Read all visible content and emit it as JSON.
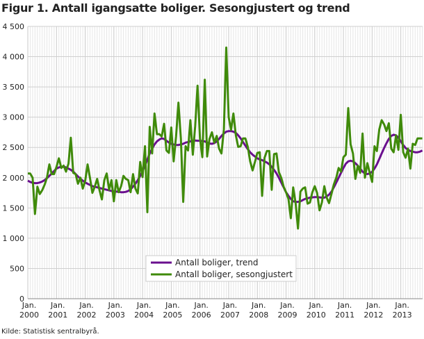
{
  "chart_data": {
    "type": "line",
    "title": "Figur 1. Antall igangsatte boliger. Sesongjustert og trend",
    "source": "Kilde: Statistisk sentralbyrå.",
    "xlabel": "",
    "ylabel": "",
    "ylim": [
      0,
      4500
    ],
    "yticks": [
      "0",
      "500",
      "1 000",
      "1 500",
      "2 000",
      "2 500",
      "3 000",
      "3 500",
      "4 000",
      "4 500"
    ],
    "ytick_values": [
      0,
      500,
      1000,
      1500,
      2000,
      2500,
      3000,
      3500,
      4000,
      4500
    ],
    "x_start": "Jan. 2000",
    "x_frequency": "monthly",
    "xtick_prefix": "Jan.",
    "xticks": [
      "2000",
      "2001",
      "2002",
      "2003",
      "2004",
      "2005",
      "2006",
      "2007",
      "2008",
      "2009",
      "2010",
      "2011",
      "2012",
      "2013"
    ],
    "grid": true,
    "legend_position": "bottom-center",
    "colors": {
      "trend": "#6a0f8e",
      "seasonal": "#3f8a0a",
      "grid": "#d0d0d0"
    },
    "series": [
      {
        "name": "Antall boliger, trend",
        "values": [
          1950,
          1930,
          1915,
          1910,
          1910,
          1920,
          1935,
          1960,
          1990,
          2030,
          2070,
          2110,
          2150,
          2170,
          2180,
          2180,
          2170,
          2150,
          2130,
          2100,
          2060,
          2020,
          1980,
          1950,
          1920,
          1900,
          1880,
          1860,
          1850,
          1840,
          1830,
          1820,
          1810,
          1800,
          1790,
          1780,
          1775,
          1770,
          1765,
          1760,
          1760,
          1765,
          1780,
          1810,
          1850,
          1900,
          1960,
          2030,
          2110,
          2200,
          2300,
          2400,
          2480,
          2550,
          2600,
          2630,
          2650,
          2640,
          2610,
          2580,
          2560,
          2550,
          2540,
          2540,
          2550,
          2560,
          2580,
          2590,
          2600,
          2610,
          2615,
          2610,
          2610,
          2605,
          2600,
          2580,
          2565,
          2560,
          2570,
          2600,
          2640,
          2690,
          2730,
          2760,
          2770,
          2770,
          2760,
          2740,
          2700,
          2650,
          2590,
          2530,
          2470,
          2420,
          2380,
          2350,
          2320,
          2300,
          2290,
          2270,
          2250,
          2220,
          2180,
          2130,
          2070,
          2000,
          1920,
          1840,
          1760,
          1700,
          1650,
          1610,
          1600,
          1600,
          1610,
          1630,
          1650,
          1660,
          1670,
          1675,
          1680,
          1680,
          1675,
          1670,
          1670,
          1690,
          1720,
          1770,
          1840,
          1920,
          2000,
          2080,
          2160,
          2230,
          2270,
          2280,
          2270,
          2240,
          2200,
          2150,
          2100,
          2070,
          2060,
          2070,
          2100,
          2150,
          2220,
          2310,
          2400,
          2490,
          2570,
          2640,
          2690,
          2710,
          2700,
          2660,
          2600,
          2540,
          2490,
          2460,
          2440,
          2430,
          2420,
          2420,
          2430,
          2450
        ]
      },
      {
        "name": "Antall boliger, sesongjustert",
        "values": [
          2070,
          2070,
          2000,
          1400,
          1850,
          1730,
          1790,
          1880,
          2000,
          2220,
          2060,
          2060,
          2180,
          2320,
          2160,
          2200,
          2100,
          2230,
          2660,
          2080,
          2060,
          1900,
          2000,
          1820,
          1950,
          2220,
          2000,
          1750,
          1850,
          1980,
          1790,
          1640,
          1960,
          2070,
          1800,
          1960,
          1610,
          1960,
          1760,
          1860,
          2030,
          1980,
          1960,
          1760,
          2060,
          1820,
          1740,
          2260,
          2010,
          2520,
          1430,
          2840,
          2400,
          3060,
          2720,
          2720,
          2680,
          2890,
          2450,
          2410,
          2830,
          2270,
          2680,
          3240,
          2650,
          1600,
          2520,
          2450,
          2950,
          2380,
          2850,
          3520,
          2650,
          2340,
          3620,
          2350,
          2640,
          2750,
          2580,
          2690,
          2480,
          2400,
          2800,
          4150,
          3000,
          2790,
          3060,
          2700,
          2510,
          2520,
          2650,
          2650,
          2510,
          2270,
          2120,
          2260,
          2410,
          2420,
          1700,
          2330,
          2440,
          2440,
          1800,
          2390,
          2400,
          2090,
          2000,
          1850,
          1760,
          1650,
          1330,
          1840,
          1580,
          1160,
          1770,
          1820,
          1840,
          1570,
          1590,
          1760,
          1860,
          1750,
          1460,
          1590,
          1860,
          1670,
          1580,
          1730,
          1890,
          2000,
          2160,
          2100,
          2340,
          2380,
          3150,
          2550,
          2400,
          1980,
          2200,
          2080,
          2730,
          2000,
          2240,
          2080,
          1930,
          2520,
          2440,
          2800,
          2950,
          2880,
          2770,
          2900,
          2480,
          2420,
          2700,
          2460,
          3040,
          2420,
          2330,
          2480,
          2150,
          2560,
          2540,
          2650,
          2650,
          2650
        ]
      }
    ]
  }
}
